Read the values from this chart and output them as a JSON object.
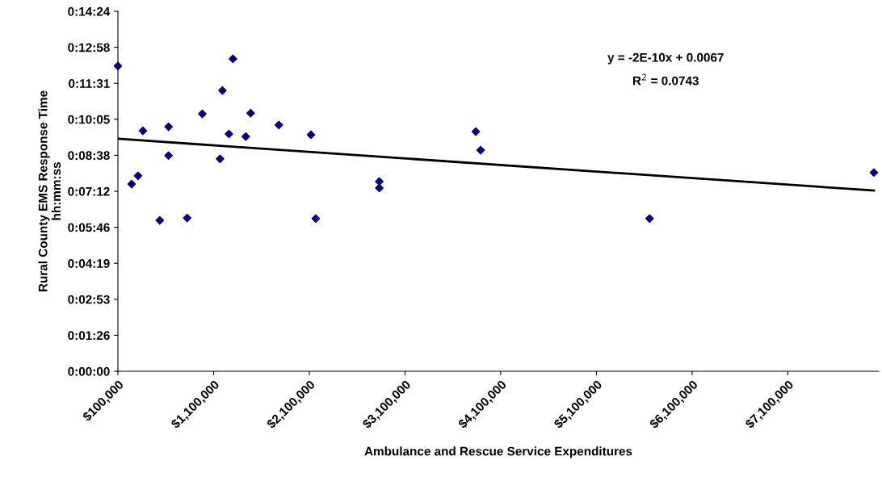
{
  "chart_data": {
    "type": "scatter",
    "xlabel": "Ambulance and Rescue Service Expenditures",
    "ylabel": "Rural County EMS Response Time\nhh:mm:ss",
    "annotations": [
      "y = -2E-10x + 0.0067",
      "R$^{2}$ = 0.0743"
    ],
    "series": [
      {
        "color": "#000080",
        "marker": "diamond",
        "x": [
          100000,
          243000,
          310000,
          361000,
          537000,
          629000,
          629000,
          823000,
          982000,
          1167000,
          1192000,
          1260000,
          1302000,
          1436000,
          1487000,
          1781000,
          2117000,
          2167000,
          2831000,
          2831000,
          3839000,
          3890000,
          5655000,
          7999000
        ],
        "values": [
          0.2035,
          0.1248,
          0.1303,
          0.1603,
          0.1006,
          0.163,
          0.1438,
          0.1022,
          0.1716,
          0.1416,
          0.1872,
          0.1582,
          0.2083,
          0.1565,
          0.1721,
          0.1642,
          0.1577,
          0.1018,
          0.1265,
          0.1222,
          0.1598,
          0.1474,
          0.1018,
          0.1325
        ]
      },
      {
        "type": "line",
        "color": "#000000",
        "marker": "none",
        "x": [
          100000,
          8000000
        ],
        "values": [
          0.155,
          0.1205
        ]
      }
    ],
    "xlim": [
      100000,
      8050000
    ],
    "xticks": [
      {
        "value": 100000,
        "label": "$100,000"
      },
      {
        "value": 1100000,
        "label": "$1,100,000"
      },
      {
        "value": 2100000,
        "label": "$2,100,000"
      },
      {
        "value": 3100000,
        "label": "$3,100,000"
      },
      {
        "value": 4100000,
        "label": "$4,100,000"
      },
      {
        "value": 5100000,
        "label": "$5,100,000"
      },
      {
        "value": 6100000,
        "label": "$6,100,000"
      },
      {
        "value": 7100000,
        "label": "$7,100,000"
      }
    ],
    "ylim": [
      0,
      0.24
    ],
    "yticks": [
      {
        "value": 0,
        "label": "0:00:00"
      },
      {
        "value": 0.024,
        "label": "0:01:26"
      },
      {
        "value": 0.048,
        "label": "0:02:53"
      },
      {
        "value": 0.072,
        "label": "0:04:19"
      },
      {
        "value": 0.096,
        "label": "0:05:46"
      },
      {
        "value": 0.12,
        "label": "0:07:12"
      },
      {
        "value": 0.144,
        "label": "0:08:38"
      },
      {
        "value": 0.168,
        "label": "0:10:05"
      },
      {
        "value": 0.192,
        "label": "0:11:31"
      },
      {
        "value": 0.216,
        "label": "0:12:58"
      },
      {
        "value": 0.24,
        "label": "0:14:24"
      }
    ],
    "grid": false,
    "legend": false
  }
}
